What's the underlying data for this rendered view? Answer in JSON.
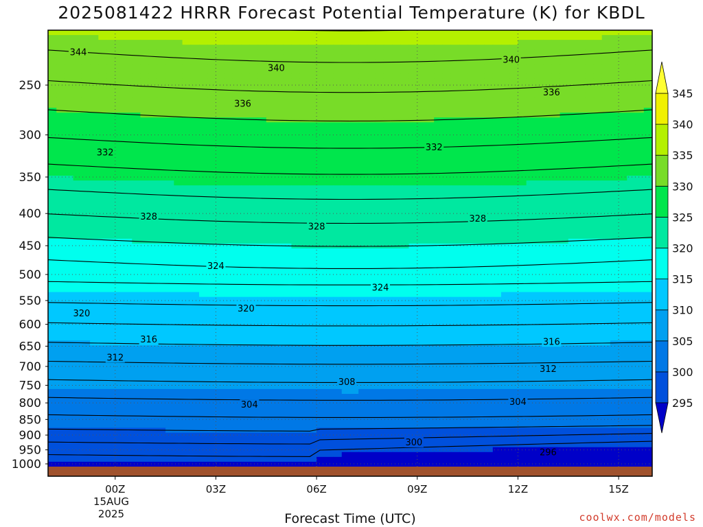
{
  "chart_data": {
    "type": "heatmap",
    "title": "2025081422 HRRR Forecast Potential Temperature (K) for KBDL",
    "xlabel": "Forecast Time (UTC)",
    "ylabel": "",
    "y_axis": {
      "scale": "log",
      "reversed": true,
      "range": [
        1000,
        200
      ],
      "tick_labels": [
        "250",
        "300",
        "350",
        "400",
        "450",
        "500",
        "550",
        "600",
        "650",
        "700",
        "750",
        "800",
        "850",
        "900",
        "950",
        "1000"
      ]
    },
    "x_axis": {
      "range_hours": [
        -2,
        16
      ],
      "tick_labels": [
        "00Z",
        "03Z",
        "06Z",
        "09Z",
        "12Z",
        "15Z"
      ],
      "tick_hours": [
        0,
        3,
        6,
        9,
        12,
        15
      ],
      "date_label": [
        "15AUG",
        "2025"
      ]
    },
    "grid": "dotted",
    "colorbar": {
      "levels": [
        295,
        300,
        305,
        310,
        315,
        320,
        325,
        330,
        335,
        340,
        345
      ],
      "tick_labels": [
        "345",
        "340",
        "335",
        "330",
        "325",
        "320",
        "315",
        "310",
        "305",
        "300",
        "295"
      ],
      "colors": [
        "#0000c8",
        "#0050dc",
        "#0078e6",
        "#00a0f0",
        "#00c8ff",
        "#00ffee",
        "#00e8a0",
        "#00e64c",
        "#78dc28",
        "#b4f000",
        "#f0f000",
        "#ffff32"
      ],
      "extend": "both"
    },
    "contour_labels": [
      {
        "value": "344",
        "hour": -1.1,
        "pressure": 222
      },
      {
        "value": "340",
        "hour": 4.8,
        "pressure": 235
      },
      {
        "value": "340",
        "hour": 11.8,
        "pressure": 228
      },
      {
        "value": "336",
        "hour": 3.8,
        "pressure": 268
      },
      {
        "value": "336",
        "hour": 13.0,
        "pressure": 257
      },
      {
        "value": "332",
        "hour": -0.3,
        "pressure": 320
      },
      {
        "value": "332",
        "hour": 9.5,
        "pressure": 314
      },
      {
        "value": "328",
        "hour": 1.0,
        "pressure": 405
      },
      {
        "value": "328",
        "hour": 6.0,
        "pressure": 420
      },
      {
        "value": "328",
        "hour": 10.8,
        "pressure": 408
      },
      {
        "value": "324",
        "hour": 3.0,
        "pressure": 485
      },
      {
        "value": "324",
        "hour": 7.9,
        "pressure": 525
      },
      {
        "value": "320",
        "hour": -1.0,
        "pressure": 577
      },
      {
        "value": "320",
        "hour": 3.9,
        "pressure": 567
      },
      {
        "value": "316",
        "hour": 1.0,
        "pressure": 635
      },
      {
        "value": "316",
        "hour": 13.0,
        "pressure": 640
      },
      {
        "value": "312",
        "hour": 0.0,
        "pressure": 678
      },
      {
        "value": "312",
        "hour": 12.9,
        "pressure": 707
      },
      {
        "value": "308",
        "hour": 6.9,
        "pressure": 742
      },
      {
        "value": "304",
        "hour": 4.0,
        "pressure": 806
      },
      {
        "value": "304",
        "hour": 12.0,
        "pressure": 798
      },
      {
        "value": "300",
        "hour": 8.9,
        "pressure": 925
      },
      {
        "value": "296",
        "hour": 12.9,
        "pressure": 960
      }
    ]
  },
  "credit": "coolwx.com/models"
}
